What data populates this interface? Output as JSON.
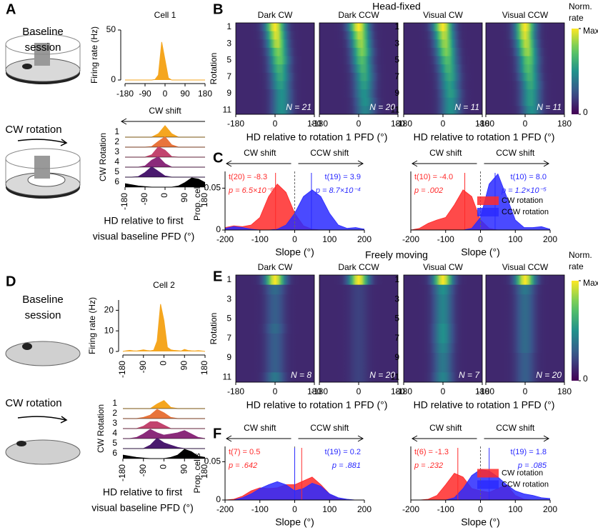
{
  "chart_data": [
    {
      "type": "area",
      "panel": "A",
      "scene_label": [
        "Baseline",
        "session"
      ],
      "title": "Cell 1",
      "ylabel": "Firing rate (Hz)",
      "x": [
        -180,
        -165,
        -150,
        -135,
        -120,
        -105,
        -90,
        -75,
        -60,
        -45,
        -30,
        -15,
        0,
        15,
        30,
        45,
        60,
        75,
        90,
        105,
        120,
        135,
        150,
        165,
        180
      ],
      "values": [
        0,
        0,
        0,
        0,
        0,
        0,
        0,
        0,
        0,
        0.5,
        5,
        38,
        20,
        2,
        0,
        0,
        0,
        0,
        0,
        0,
        0,
        0,
        0,
        0,
        0
      ],
      "color": "#f5a61f",
      "xlim": [
        -180,
        180
      ],
      "xticks": [
        -180,
        -90,
        0,
        90,
        180
      ],
      "ylim": [
        0,
        50
      ],
      "yticks": [
        0,
        50
      ]
    },
    {
      "type": "ridge",
      "scene_label": [
        "CW rotation"
      ],
      "shift_label": "CW shift",
      "ylabel": "CW Rotation",
      "xlabel": [
        "HD relative to first",
        "visual baseline PFD (°)"
      ],
      "categories": [
        "1",
        "2",
        "3",
        "4",
        "5",
        "6"
      ],
      "x": [
        -180,
        -150,
        -120,
        -90,
        -60,
        -30,
        0,
        30,
        60,
        90,
        120,
        150,
        180
      ],
      "xlim": [
        -180,
        180
      ],
      "xticks": [
        -180,
        -90,
        0,
        90,
        180
      ],
      "series": [
        {
          "color": "#f5a61f",
          "values": [
            0,
            0,
            0,
            0,
            0,
            0.3,
            1,
            0.3,
            0,
            0,
            0,
            0,
            0
          ]
        },
        {
          "color": "#e8743b",
          "values": [
            0,
            0,
            0,
            0,
            0.05,
            0.5,
            0.9,
            0.2,
            0,
            0,
            0,
            0,
            0
          ]
        },
        {
          "color": "#c2446e",
          "values": [
            0,
            0,
            0,
            0,
            0.2,
            0.9,
            0.6,
            0.05,
            0,
            0,
            0,
            0,
            0
          ]
        },
        {
          "color": "#8a2a7a",
          "values": [
            0,
            0,
            0,
            0.1,
            0.6,
            0.9,
            0.3,
            0,
            0,
            0,
            0,
            0,
            0
          ]
        },
        {
          "color": "#4a1a6e",
          "values": [
            0,
            0,
            0.05,
            0.4,
            0.9,
            0.5,
            0.1,
            0,
            0,
            0,
            0,
            0,
            0
          ]
        },
        {
          "color": "#000000",
          "values": [
            0.3,
            0.2,
            0.1,
            0.05,
            0,
            0,
            0,
            0,
            0.1,
            0.4,
            0.8,
            0.7,
            0.4
          ]
        }
      ]
    },
    {
      "type": "heatmap",
      "panel": "B",
      "title": "Head-fixed",
      "ylabel": "Rotation",
      "xlabel": "HD relative to rotation 1 PFD (°)",
      "categories": [
        "1",
        null,
        "3",
        null,
        "5",
        null,
        "7",
        null,
        "9",
        null,
        "11"
      ],
      "xlim": [
        -180,
        180
      ],
      "xticks": [
        -180,
        0,
        180
      ],
      "colorbar_label": [
        "Norm.",
        "rate"
      ],
      "colorbar_ticks": [
        {
          "value": 1,
          "label": "Max"
        },
        0
      ],
      "panels": [
        {
          "title": "Dark CW",
          "n_label": "N = 21",
          "peak": [
            0,
            5,
            10,
            15,
            20,
            20,
            25,
            25,
            30,
            30,
            30
          ],
          "peak_norm": [
            1,
            0.95,
            0.9,
            0.8,
            0.75,
            0.65,
            0.6,
            0.55,
            0.5,
            0.5,
            0.5
          ]
        },
        {
          "title": "Dark CCW",
          "n_label": "N = 20",
          "peak": [
            0,
            5,
            10,
            15,
            15,
            20,
            25,
            25,
            25,
            30,
            30
          ],
          "peak_norm": [
            1,
            0.9,
            0.85,
            0.8,
            0.7,
            0.65,
            0.6,
            0.55,
            0.5,
            0.5,
            0.45
          ]
        },
        {
          "title": "Visual CW",
          "n_label": "N = 11",
          "peak": [
            0,
            5,
            10,
            15,
            20,
            25,
            30,
            30,
            35,
            35,
            35
          ],
          "peak_norm": [
            1,
            0.9,
            0.85,
            0.8,
            0.7,
            0.65,
            0.6,
            0.55,
            0.55,
            0.5,
            0.5
          ]
        },
        {
          "title": "Visual CCW",
          "n_label": "N = 11",
          "peak": [
            0,
            0,
            5,
            10,
            15,
            15,
            20,
            25,
            25,
            25,
            30
          ],
          "peak_norm": [
            1,
            0.95,
            0.9,
            0.85,
            0.75,
            0.7,
            0.65,
            0.6,
            0.55,
            0.55,
            0.5
          ]
        }
      ]
    },
    {
      "type": "density",
      "panel": "C",
      "shift_labels": [
        "CW shift",
        "CCW shift"
      ],
      "ylabel": "Prop. cells",
      "xlabel": "Slope (°)",
      "x": [
        -200,
        -175,
        -150,
        -125,
        -100,
        -75,
        -50,
        -25,
        0,
        25,
        50,
        75,
        100,
        125,
        150,
        175,
        200
      ],
      "xlim": [
        -200,
        200
      ],
      "xticks": [
        -200,
        -100,
        0,
        100,
        200
      ],
      "ylim": [
        0,
        0.07
      ],
      "yticks": [
        0,
        0.05
      ],
      "legend": false,
      "series": [
        {
          "color": "#ff2a2a",
          "mean": -55,
          "stats": [
            "t(20) = -8.3",
            "p = 6.5×10⁻⁸"
          ],
          "values": [
            0.003,
            0.005,
            0.004,
            0.006,
            0.015,
            0.04,
            0.055,
            0.045,
            0.02,
            0.005,
            0.001,
            0,
            0,
            0,
            0,
            0,
            0
          ]
        },
        {
          "color": "#2a2aff",
          "mean": 48,
          "stats": [
            "t(19) = 3.9",
            "p = 8.7×10⁻⁴"
          ],
          "values": [
            0.002,
            0.004,
            0.003,
            0.001,
            0,
            0,
            0.001,
            0.006,
            0.02,
            0.04,
            0.048,
            0.04,
            0.02,
            0.006,
            0.002,
            0.003,
            0.001
          ]
        }
      ]
    },
    {
      "type": "density",
      "shift_labels": [
        "CW shift",
        "CCW shift"
      ],
      "xlabel": "Slope (°)",
      "x": [
        -200,
        -175,
        -150,
        -125,
        -100,
        -75,
        -50,
        -25,
        0,
        25,
        50,
        75,
        100,
        125,
        150,
        175,
        200
      ],
      "xlim": [
        -200,
        200
      ],
      "xticks": [
        -200,
        -100,
        0,
        100,
        200
      ],
      "ylim": [
        0,
        0.07
      ],
      "legend": true,
      "series": [
        {
          "name": "CW rotation",
          "color": "#ff2a2a",
          "mean": -45,
          "stats": [
            "t(10) = -4.0",
            "p = .002"
          ],
          "values": [
            0,
            0.002,
            0.008,
            0.012,
            0.015,
            0.03,
            0.048,
            0.04,
            0.012,
            0.002,
            0,
            0,
            0,
            0,
            0,
            0,
            0
          ]
        },
        {
          "name": "CCW rotation",
          "color": "#2a2aff",
          "mean": 42,
          "stats": [
            "t(10) = 8.0",
            "p = 1.2×10⁻⁵"
          ],
          "values": [
            0,
            0,
            0,
            0,
            0,
            0,
            0,
            0.002,
            0.015,
            0.055,
            0.067,
            0.04,
            0.012,
            0.003,
            0.003,
            0.004,
            0.001
          ]
        }
      ]
    },
    {
      "type": "area",
      "panel": "D",
      "scene_label": [
        "Baseline",
        "session"
      ],
      "title": "Cell 2",
      "ylabel": "Firing rate (Hz)",
      "x": [
        -180,
        -165,
        -150,
        -135,
        -120,
        -105,
        -90,
        -75,
        -60,
        -45,
        -30,
        -15,
        0,
        15,
        30,
        45,
        60,
        75,
        90,
        105,
        120,
        135,
        150,
        165,
        180
      ],
      "values": [
        0,
        0.3,
        0.5,
        0.3,
        0.2,
        0.5,
        0.8,
        0.5,
        0.3,
        0.6,
        5,
        23,
        15,
        2,
        0.8,
        0.5,
        0.4,
        0.2,
        1,
        0.5,
        0.3,
        0.2,
        0.4,
        0.2,
        0
      ],
      "color": "#f5a61f",
      "xlim": [
        -180,
        180
      ],
      "xticks": [
        -180,
        -90,
        0,
        90,
        180
      ],
      "ylim": [
        0,
        25
      ],
      "yticks": [
        0,
        10,
        20
      ]
    },
    {
      "type": "ridge",
      "scene_label": [
        "CW rotation"
      ],
      "ylabel": "CW Rotation",
      "xlabel": [
        "HD relative to first",
        "visual baseline PFD (°)"
      ],
      "categories": [
        "1",
        "2",
        "3",
        "4",
        "5",
        "6"
      ],
      "x": [
        -180,
        -150,
        -120,
        -90,
        -60,
        -30,
        0,
        30,
        60,
        90,
        120,
        150,
        180
      ],
      "xlim": [
        -180,
        180
      ],
      "xticks": [
        -180,
        -90,
        0,
        90,
        180
      ],
      "series": [
        {
          "color": "#f5a61f",
          "values": [
            0,
            0,
            0,
            0,
            0,
            0.4,
            0.7,
            0.1,
            0,
            0,
            0,
            0,
            0
          ]
        },
        {
          "color": "#e8743b",
          "values": [
            0,
            0,
            0,
            0.1,
            0.3,
            0.8,
            0.5,
            0.1,
            0,
            0,
            0,
            0,
            0
          ]
        },
        {
          "color": "#c2446e",
          "values": [
            0,
            0,
            0,
            0.2,
            0.6,
            0.6,
            0.3,
            0,
            0,
            0,
            0,
            0,
            0
          ]
        },
        {
          "color": "#8a2a7a",
          "values": [
            0,
            0,
            0.1,
            0.4,
            0.8,
            0.5,
            0.3,
            0.4,
            0.5,
            0.7,
            0.4,
            0.1,
            0
          ]
        },
        {
          "color": "#4a1a6e",
          "values": [
            0,
            0,
            0,
            0,
            0.3,
            0.9,
            0.5,
            0.3,
            0.1,
            0,
            0,
            0,
            0
          ]
        },
        {
          "color": "#000000",
          "values": [
            0.3,
            0.2,
            0.1,
            0.05,
            0,
            0,
            0,
            0.1,
            0.3,
            0.8,
            0.6,
            0.2,
            0.1
          ]
        }
      ]
    },
    {
      "type": "heatmap",
      "panel": "E",
      "title": "Freely moving",
      "ylabel": "Rotation",
      "xlabel": "HD relative to rotation 1 PFD (°)",
      "categories": [
        "1",
        null,
        "3",
        null,
        "5",
        null,
        "7",
        null,
        "9",
        null,
        "11"
      ],
      "xlim": [
        -180,
        180
      ],
      "xticks": [
        -180,
        0,
        180
      ],
      "colorbar_label": [
        "Norm.",
        "rate"
      ],
      "colorbar_ticks": [
        {
          "value": 1,
          "label": "Max"
        },
        0
      ],
      "panels": [
        {
          "title": "Dark CW",
          "n_label": "N = 8",
          "peak": [
            0,
            0,
            0,
            0,
            0,
            0,
            0,
            0,
            0,
            0,
            0
          ],
          "peak_norm": [
            1,
            0.35,
            0.3,
            0.3,
            0.3,
            0.35,
            0.3,
            0.3,
            0.3,
            0.3,
            0.4
          ]
        },
        {
          "title": "Dark CCW",
          "n_label": "N = 20",
          "peak": [
            0,
            0,
            0,
            0,
            0,
            0,
            0,
            0,
            0,
            0,
            0
          ],
          "peak_norm": [
            1,
            0.2,
            0.2,
            0.2,
            0.2,
            0.2,
            0.2,
            0.2,
            0.2,
            0.2,
            0.2
          ]
        },
        {
          "title": "Visual CW",
          "n_label": "N = 7",
          "peak": [
            0,
            0,
            0,
            0,
            0,
            0,
            0,
            0,
            0,
            0,
            0
          ],
          "peak_norm": [
            1,
            0.5,
            0.45,
            0.45,
            0.45,
            0.5,
            0.5,
            0.45,
            0.4,
            0.4,
            0.45
          ]
        },
        {
          "title": "Visual CCW",
          "n_label": "N = 20",
          "peak": [
            0,
            0,
            0,
            0,
            0,
            0,
            0,
            0,
            0,
            0,
            0
          ],
          "peak_norm": [
            1,
            0.4,
            0.35,
            0.35,
            0.35,
            0.35,
            0.35,
            0.35,
            0.3,
            0.3,
            0.3
          ]
        }
      ]
    },
    {
      "type": "density",
      "panel": "F",
      "shift_labels": [
        "CW shift",
        "CCW shift"
      ],
      "ylabel": "Prop. cells",
      "xlabel": "Slope (°)",
      "x": [
        -200,
        -175,
        -150,
        -125,
        -100,
        -75,
        -50,
        -25,
        0,
        25,
        50,
        75,
        100,
        125,
        150,
        175,
        200
      ],
      "xlim": [
        -200,
        200
      ],
      "xticks": [
        -200,
        -100,
        0,
        100,
        200
      ],
      "ylim": [
        0,
        0.07
      ],
      "yticks": [
        0,
        0.05
      ],
      "legend": false,
      "series": [
        {
          "color": "#ff2a2a",
          "mean": 20,
          "stats": [
            "t(7) = 0.5",
            "p = .642"
          ],
          "values": [
            0,
            0.001,
            0.005,
            0.012,
            0.016,
            0.015,
            0.016,
            0.02,
            0.02,
            0.025,
            0.03,
            0.02,
            0.008,
            0.002,
            0,
            0,
            0
          ]
        },
        {
          "color": "#2a2aff",
          "mean": 0,
          "stats": [
            "t(19) = 0.2",
            "p = .881"
          ],
          "values": [
            0,
            0,
            0.003,
            0.008,
            0.015,
            0.02,
            0.024,
            0.02,
            0.012,
            0.015,
            0.022,
            0.018,
            0.008,
            0.003,
            0.001,
            0,
            0
          ]
        }
      ]
    },
    {
      "type": "density",
      "shift_labels": [
        "CW shift",
        "CCW shift"
      ],
      "xlabel": "Slope (°)",
      "x": [
        -200,
        -175,
        -150,
        -125,
        -100,
        -75,
        -50,
        -25,
        0,
        25,
        50,
        75,
        100,
        125,
        150,
        175,
        200
      ],
      "xlim": [
        -200,
        200
      ],
      "xticks": [
        -200,
        -100,
        0,
        100,
        200
      ],
      "ylim": [
        0,
        0.07
      ],
      "legend": true,
      "series": [
        {
          "name": "CW rotation",
          "color": "#ff2a2a",
          "mean": -65,
          "stats": [
            "t(6) = -1.3",
            "p = .232"
          ],
          "values": [
            0,
            0,
            0.001,
            0.006,
            0.02,
            0.035,
            0.03,
            0.015,
            0.012,
            0.01,
            0.015,
            0.02,
            0.006,
            0.001,
            0,
            0,
            0
          ]
        },
        {
          "name": "CCW rotation",
          "color": "#2a2aff",
          "mean": 25,
          "stats": [
            "t(19) = 1.8",
            "p = .085"
          ],
          "values": [
            0,
            0,
            0,
            0,
            0,
            0.003,
            0.015,
            0.032,
            0.04,
            0.038,
            0.03,
            0.02,
            0.012,
            0.008,
            0.006,
            0.003,
            0.002
          ]
        }
      ]
    }
  ]
}
